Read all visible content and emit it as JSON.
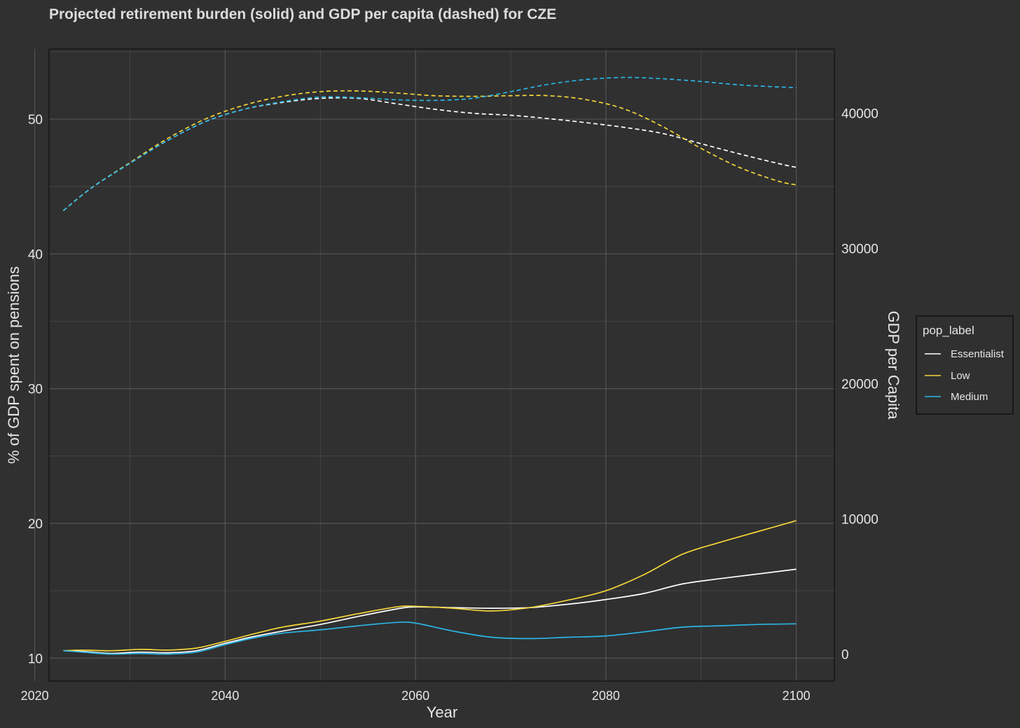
{
  "colors": {
    "background": "#303030",
    "grid_major": "#575757",
    "grid_minor": "#4a4a4a",
    "text": "#e6e6e6",
    "title": "#dcdcdc",
    "essentialist": "#ffffff",
    "low": "#f5d63a",
    "medium": "#2bb6e6"
  },
  "chart_data": {
    "type": "line",
    "title": "Projected retirement burden (solid) and GDP per capita (dashed) for CZE",
    "xlabel": "Year",
    "ylabel": "% of GDP spent on pensions",
    "y2label": "GDP per Capita",
    "xlim": [
      2021.5,
      2104
    ],
    "ylim": [
      8.3,
      55.2
    ],
    "y2lim": [
      -2000,
      44750
    ],
    "x_ticks": [
      2020,
      2040,
      2060,
      2080,
      2100
    ],
    "y_ticks": [
      10,
      20,
      30,
      40,
      50
    ],
    "y2_ticks": [
      0,
      10000,
      20000,
      30000,
      40000
    ],
    "legend": {
      "title": "pop_label",
      "position": "right",
      "entries": [
        "Essentialist",
        "Low",
        "Medium"
      ]
    },
    "series": [
      {
        "name": "Essentialist",
        "axis": "left",
        "style": "solid",
        "color_key": "essentialist",
        "x": [
          2023,
          2025,
          2028,
          2031,
          2034,
          2037,
          2040,
          2043,
          2046,
          2050,
          2054,
          2058,
          2060,
          2064,
          2068,
          2072,
          2076,
          2080,
          2084,
          2088,
          2092,
          2096,
          2100
        ],
        "values": [
          10.55,
          10.5,
          10.35,
          10.45,
          10.4,
          10.55,
          11.1,
          11.6,
          12.0,
          12.5,
          13.1,
          13.65,
          13.8,
          13.75,
          13.7,
          13.75,
          14.0,
          14.35,
          14.8,
          15.5,
          15.9,
          16.25,
          16.6
        ]
      },
      {
        "name": "Low",
        "axis": "left",
        "style": "solid",
        "color_key": "low",
        "x": [
          2023,
          2025,
          2028,
          2031,
          2034,
          2037,
          2040,
          2043,
          2046,
          2050,
          2054,
          2058,
          2060,
          2064,
          2068,
          2072,
          2076,
          2080,
          2084,
          2088,
          2092,
          2096,
          2100
        ],
        "values": [
          10.55,
          10.6,
          10.55,
          10.65,
          10.6,
          10.75,
          11.25,
          11.8,
          12.3,
          12.75,
          13.3,
          13.8,
          13.85,
          13.7,
          13.5,
          13.75,
          14.3,
          15.0,
          16.2,
          17.7,
          18.6,
          19.4,
          20.2
        ]
      },
      {
        "name": "Medium",
        "axis": "left",
        "style": "solid",
        "color_key": "medium",
        "x": [
          2023,
          2025,
          2028,
          2031,
          2034,
          2037,
          2040,
          2043,
          2046,
          2050,
          2054,
          2058,
          2060,
          2064,
          2068,
          2072,
          2076,
          2080,
          2084,
          2088,
          2092,
          2096,
          2100
        ],
        "values": [
          10.55,
          10.45,
          10.3,
          10.35,
          10.3,
          10.45,
          11.0,
          11.5,
          11.85,
          12.1,
          12.4,
          12.65,
          12.6,
          12.0,
          11.55,
          11.45,
          11.55,
          11.65,
          11.95,
          12.3,
          12.4,
          12.5,
          12.55
        ]
      },
      {
        "name": "Essentialist",
        "axis": "right",
        "style": "dashed",
        "color_key": "essentialist",
        "x": [
          2023,
          2026,
          2030,
          2034,
          2038,
          2042,
          2046,
          2050,
          2054,
          2058,
          2062,
          2066,
          2070,
          2074,
          2078,
          2082,
          2086,
          2090,
          2094,
          2098,
          2100
        ],
        "values": [
          32800,
          34500,
          36300,
          38000,
          39400,
          40300,
          40800,
          41100,
          41100,
          40700,
          40300,
          40000,
          39850,
          39600,
          39300,
          38950,
          38500,
          37750,
          37000,
          36300,
          36000
        ]
      },
      {
        "name": "Low",
        "axis": "right",
        "style": "dashed",
        "color_key": "low",
        "x": [
          2023,
          2026,
          2030,
          2034,
          2038,
          2042,
          2046,
          2050,
          2054,
          2058,
          2062,
          2066,
          2070,
          2074,
          2078,
          2082,
          2086,
          2090,
          2094,
          2098,
          2100
        ],
        "values": [
          32800,
          34500,
          36350,
          38150,
          39600,
          40600,
          41250,
          41600,
          41650,
          41500,
          41300,
          41250,
          41300,
          41300,
          41000,
          40300,
          39000,
          37400,
          36000,
          35000,
          34700
        ]
      },
      {
        "name": "Medium",
        "axis": "right",
        "style": "dashed",
        "color_key": "medium",
        "x": [
          2023,
          2026,
          2030,
          2034,
          2038,
          2042,
          2046,
          2050,
          2054,
          2058,
          2062,
          2066,
          2070,
          2074,
          2078,
          2082,
          2086,
          2090,
          2094,
          2098,
          2100
        ],
        "values": [
          32800,
          34500,
          36300,
          38000,
          39400,
          40300,
          40850,
          41200,
          41150,
          41000,
          40950,
          41100,
          41600,
          42150,
          42500,
          42650,
          42550,
          42350,
          42100,
          41950,
          41900
        ]
      }
    ]
  }
}
